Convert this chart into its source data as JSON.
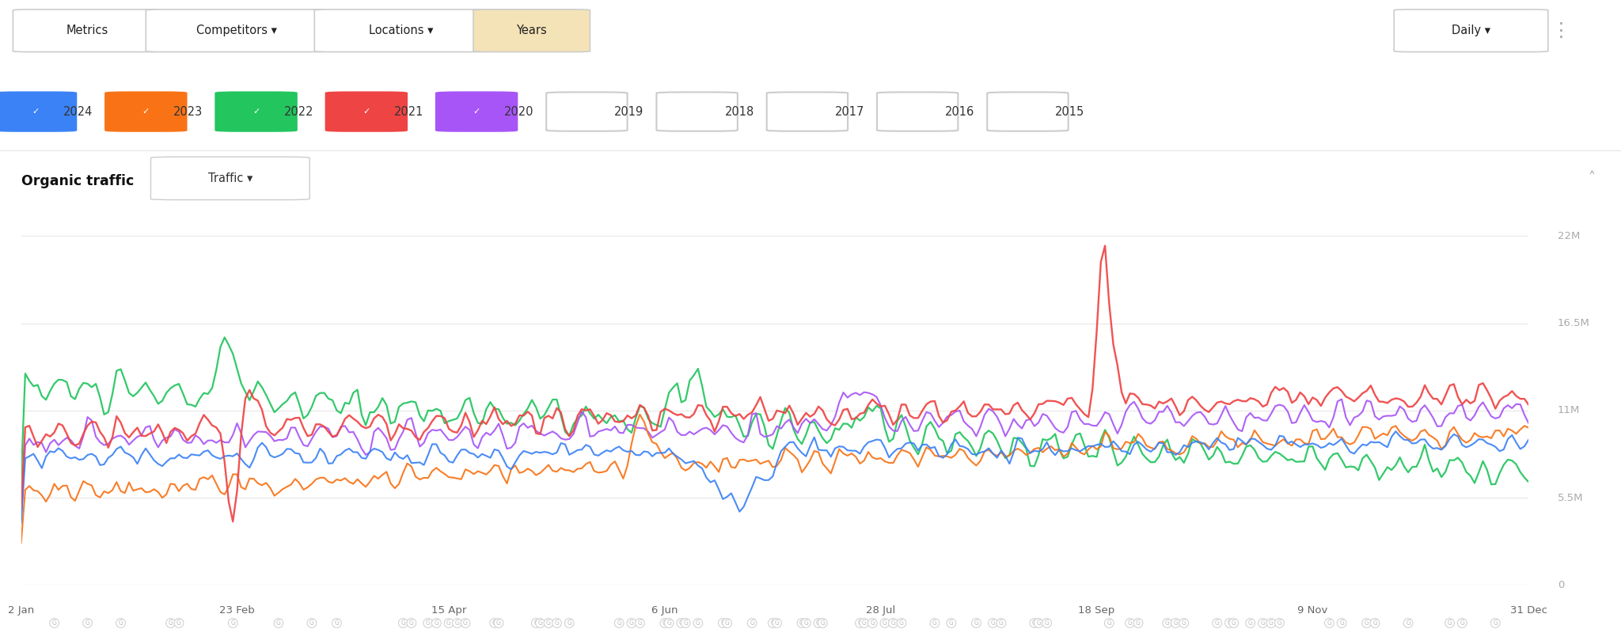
{
  "title": "Organic traffic",
  "bg_color": "#ffffff",
  "grid_color": "#e0e0e0",
  "axis_label_color": "#999999",
  "ytick_labels": [
    "5.5M",
    "11M",
    "16.5M",
    "22M"
  ],
  "ytick_values": [
    5500000,
    11000000,
    16500000,
    22000000
  ],
  "ylim": [
    0,
    23000000
  ],
  "xtick_labels": [
    "2 Jan",
    "23 Feb",
    "15 Apr",
    "6 Jun",
    "28 Jul",
    "18 Sep",
    "9 Nov",
    "31 Dec"
  ],
  "xtick_positions": [
    0,
    52,
    103,
    155,
    207,
    259,
    311,
    363
  ],
  "series_colors": {
    "2024": "#3b82f6",
    "2023": "#f97316",
    "2022": "#22c55e",
    "2021": "#ef4444",
    "2020": "#a855f7"
  },
  "n_points": 364,
  "header_buttons": [
    {
      "label": "Metrics",
      "active": false
    },
    {
      "label": "Competitors ▾",
      "active": false
    },
    {
      "label": "Locations ▾",
      "active": false
    },
    {
      "label": "Years",
      "active": true
    }
  ],
  "legend_items": [
    {
      "year": "2024",
      "color": "#3b82f6",
      "checked": true
    },
    {
      "year": "2023",
      "color": "#f97316",
      "checked": true
    },
    {
      "year": "2022",
      "color": "#22c55e",
      "checked": true
    },
    {
      "year": "2021",
      "color": "#ef4444",
      "checked": true
    },
    {
      "year": "2020",
      "color": "#a855f7",
      "checked": true
    },
    {
      "year": "2019",
      "color": null,
      "checked": false
    },
    {
      "year": "2018",
      "color": null,
      "checked": false
    },
    {
      "year": "2017",
      "color": null,
      "checked": false
    },
    {
      "year": "2016",
      "color": null,
      "checked": false
    },
    {
      "year": "2015",
      "color": null,
      "checked": false
    }
  ]
}
